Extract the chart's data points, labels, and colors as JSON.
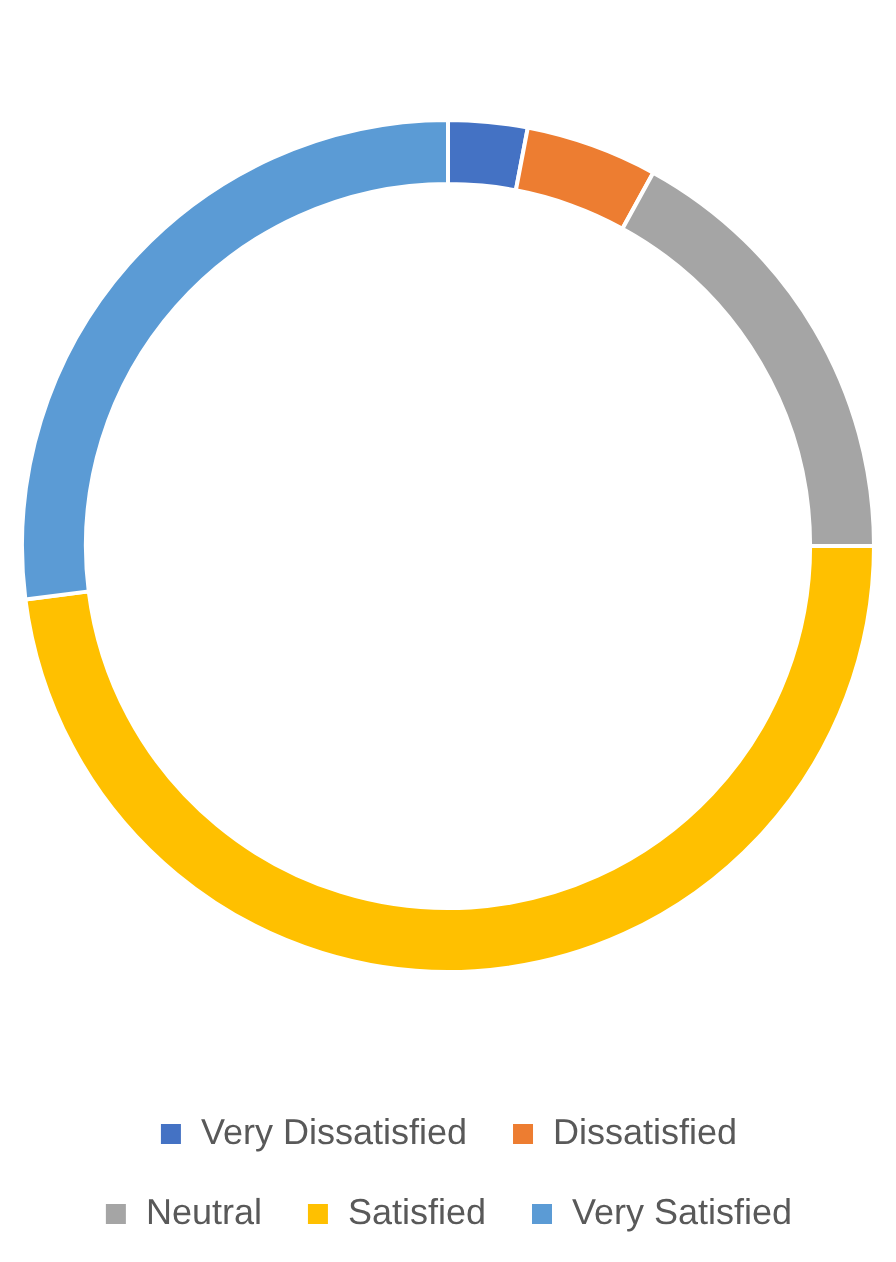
{
  "chart_data": {
    "type": "donut",
    "categories": [
      "Very Dissatisfied",
      "Dissatisfied",
      "Neutral",
      "Satisfied",
      "Very Satisfied"
    ],
    "values": [
      3,
      5,
      17,
      48,
      27
    ],
    "colors": [
      "#4472c4",
      "#ed7d31",
      "#a5a5a5",
      "#ffc000",
      "#5b9bd5"
    ],
    "legend": "bottom"
  }
}
